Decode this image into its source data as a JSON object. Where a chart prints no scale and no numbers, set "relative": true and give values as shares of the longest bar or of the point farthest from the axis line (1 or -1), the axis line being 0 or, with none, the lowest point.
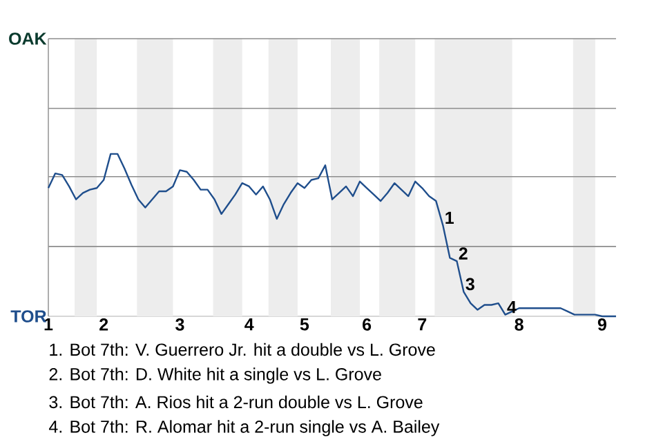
{
  "chart_data": {
    "type": "line",
    "relative": true,
    "categories": [
      "1",
      null,
      null,
      null,
      null,
      null,
      null,
      null,
      "2",
      null,
      null,
      null,
      null,
      null,
      null,
      null,
      null,
      null,
      null,
      "3",
      null,
      null,
      null,
      null,
      null,
      null,
      null,
      null,
      null,
      "4",
      null,
      null,
      null,
      null,
      null,
      null,
      null,
      "5",
      null,
      null,
      null,
      null,
      null,
      null,
      null,
      null,
      "6",
      null,
      null,
      null,
      null,
      null,
      null,
      null,
      "7",
      null,
      null,
      null,
      null,
      null,
      null,
      null,
      null,
      null,
      null,
      null,
      null,
      null,
      "8",
      null,
      null,
      null,
      null,
      null,
      null,
      null,
      null,
      null,
      null,
      null,
      "9",
      null,
      null
    ],
    "marker": "none",
    "line_style": "solid",
    "ref_lines": [
      {
        "axis": "y",
        "value": 0.43,
        "color": "#8c8c8c"
      },
      {
        "axis": "y",
        "value": 0.86,
        "color": "#8c8c8c"
      },
      {
        "axis": "y",
        "value": 1.28,
        "color": "#8c8c8c"
      },
      {
        "axis": "y",
        "value": 1.71,
        "color": "#8c8c8c"
      }
    ],
    "series": [
      {
        "color": "#1f4e8c",
        "values": [
          0.79,
          0.88,
          0.87,
          0.8,
          0.72,
          0.76,
          0.78,
          0.79,
          0.84,
          1,
          1,
          0.91,
          0.81,
          0.72,
          0.67,
          0.72,
          0.77,
          0.77,
          0.8,
          0.9,
          0.89,
          0.84,
          0.78,
          0.78,
          0.72,
          0.63,
          0.69,
          0.75,
          0.82,
          0.8,
          0.75,
          0.8,
          0.72,
          0.6,
          0.69,
          0.76,
          0.82,
          0.79,
          0.84,
          0.85,
          0.93,
          0.72,
          0.76,
          0.8,
          0.74,
          0.83,
          0.79,
          0.75,
          0.71,
          0.76,
          0.82,
          0.78,
          0.74,
          0.83,
          0.79,
          0.74,
          0.71,
          0.56,
          0.36,
          0.34,
          0.15,
          0.08,
          0.04,
          0.07,
          0.07,
          0.08,
          0.01,
          0.03,
          0.05,
          0.05,
          0.05,
          0.05,
          0.05,
          0.05,
          0.05,
          0.03,
          0.01,
          0.01,
          0.01,
          0.01,
          0,
          0,
          0
        ]
      }
    ],
    "annotations": [
      "OAK",
      "TOR",
      {
        "text": "1",
        "y": 0.56
      },
      {
        "text": "2",
        "y": 0.34
      },
      {
        "text": "3",
        "y": 0.15
      },
      {
        "text": "4",
        "y": 0.01
      },
      "1. Bot 7th: V. Guerrero Jr. hit a double vs L. Grove",
      "2. Bot 7th: D. White hit a single vs L. Grove",
      "3. Bot 7th: A. Rios hit a 2-run double vs L. Grove",
      "4. Bot 7th: R. Alomar hit a 2-run single vs A. Bailey"
    ]
  }
}
